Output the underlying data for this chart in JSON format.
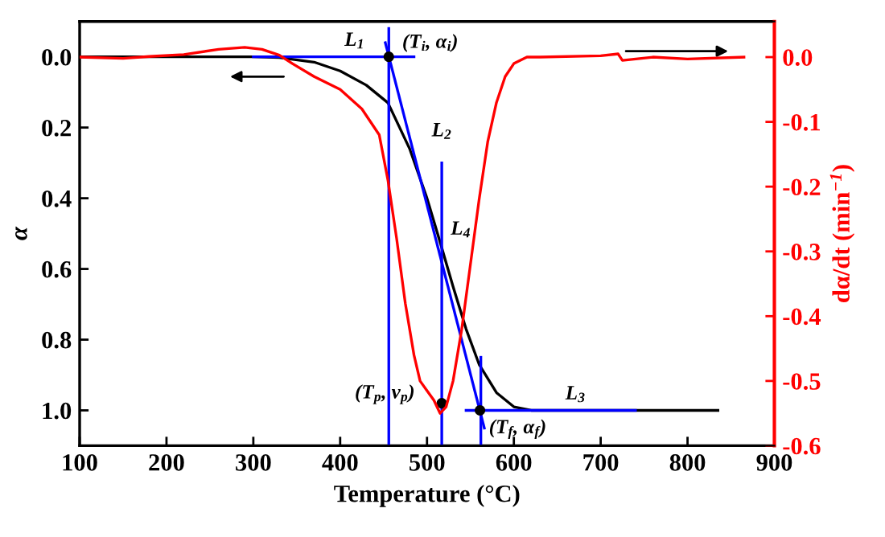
{
  "chart_data": {
    "type": "line",
    "xlabel": "Temperature (°C)",
    "ylabel": "α",
    "y2label": "dα/dt (min$^{−1}$)",
    "xlim": [
      100,
      900
    ],
    "xticks": [
      100,
      200,
      300,
      400,
      500,
      600,
      700,
      800,
      900
    ],
    "ylim": [
      1.1,
      -0.1
    ],
    "yticks": [
      {
        "value": 0,
        "label": "0.0"
      },
      0.2,
      0.4,
      0.6,
      0.8,
      {
        "value": 1,
        "label": "1.0"
      }
    ],
    "y2lim": [
      -0.6,
      0.055
    ],
    "y2ticks": [
      {
        "value": 0,
        "label": "0.0"
      },
      -0.1,
      -0.2,
      -0.3,
      -0.4,
      -0.5,
      -0.6
    ],
    "legend": false,
    "grid": false,
    "marker": "none",
    "line_style": "solid",
    "series": [
      {
        "color": "#000000",
        "x": [
          100,
          300,
          330,
          370,
          400,
          430,
          455,
          480,
          500,
          517,
          530,
          545,
          560,
          580,
          600,
          620,
          700,
          835
        ],
        "values": [
          0,
          0,
          0.002,
          0.015,
          0.04,
          0.08,
          0.13,
          0.26,
          0.4,
          0.54,
          0.65,
          0.77,
          0.87,
          0.95,
          0.99,
          1.0,
          1.0,
          1.0
        ]
      },
      {
        "color": "#ff0000",
        "axis": "y2",
        "x": [
          100,
          150,
          180,
          220,
          260,
          290,
          310,
          330,
          345,
          370,
          400,
          425,
          445,
          455,
          465,
          475,
          485,
          492,
          500,
          508,
          515,
          522,
          530,
          540,
          550,
          560,
          570,
          580,
          590,
          600,
          615,
          630,
          700,
          720,
          725,
          760,
          800,
          865
        ],
        "values": [
          0,
          -0.002,
          0.001,
          0.004,
          0.012,
          0.015,
          0.012,
          0.003,
          -0.01,
          -0.03,
          -0.05,
          -0.08,
          -0.12,
          -0.19,
          -0.28,
          -0.38,
          -0.46,
          -0.5,
          -0.515,
          -0.53,
          -0.55,
          -0.54,
          -0.5,
          -0.42,
          -0.32,
          -0.22,
          -0.13,
          -0.07,
          -0.03,
          -0.01,
          0,
          0,
          0.002,
          0.005,
          -0.005,
          0,
          -0.003,
          0
        ]
      },
      {
        "color": "#0000ff",
        "x": [
          300,
          485
        ],
        "values": [
          0,
          0
        ]
      },
      {
        "color": "#0000ff",
        "x": [
          456,
          456
        ],
        "values": [
          -0.08,
          1.1
        ]
      },
      {
        "color": "#0000ff",
        "x": [
          452,
          566
        ],
        "values": [
          -0.04,
          1.05
        ]
      },
      {
        "color": "#0000ff",
        "x": [
          517,
          517
        ],
        "values": [
          0.3,
          1.1
        ]
      },
      {
        "color": "#0000ff",
        "x": [
          562,
          562
        ],
        "values": [
          0.85,
          1.1
        ]
      },
      {
        "color": "#0000ff",
        "x": [
          545,
          740
        ],
        "values": [
          1.0,
          1.0
        ]
      },
      {
        "type": "scatter",
        "marker": "circle",
        "color": "#000000",
        "x": [
          456,
          517,
          561
        ],
        "values": [
          0,
          0.98,
          1.0
        ]
      }
    ],
    "annotations": [
      {
        "text": "L$_{1}$",
        "x": 405,
        "y": 0
      },
      {
        "text": "(T$_{i}$, α$_{i}$)",
        "x": 456,
        "y": 0
      },
      {
        "text": "L$_{2}$",
        "x": 517,
        "y": 0.3
      },
      {
        "text": "L$_{4}$",
        "x": 517,
        "y": 0.54
      },
      {
        "text": "L$_{3}$",
        "x": 680,
        "y": 1.0
      },
      {
        "text": "(T$_{p}$, v$_{p}$)",
        "x": 517,
        "y": 0.98
      },
      {
        "text": "(T$_{f}$, α$_{f}$)",
        "x": 561,
        "y": 1.0
      }
    ]
  }
}
